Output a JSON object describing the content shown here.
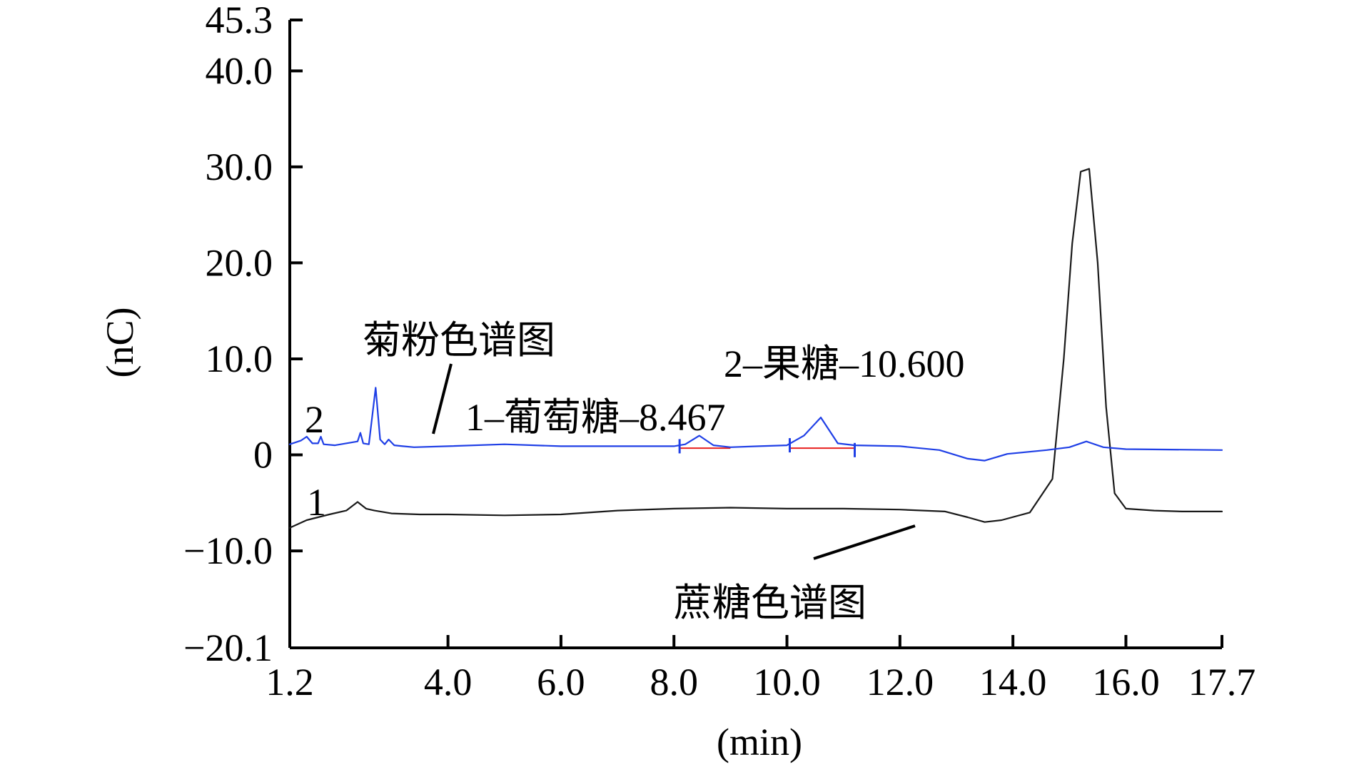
{
  "chart_data": {
    "type": "line",
    "xlabel": "(min)",
    "ylabel": "(nC)",
    "xlim": [
      1.2,
      17.7
    ],
    "ylim": [
      -20.1,
      45.3
    ],
    "x_ticks": [
      1.2,
      4.0,
      6.0,
      8.0,
      10.0,
      12.0,
      14.0,
      16.0,
      17.7
    ],
    "x_tick_labels": [
      "1.2",
      "4.0",
      "6.0",
      "8.0",
      "10.0",
      "12.0",
      "14.0",
      "16.0",
      "17.7"
    ],
    "y_ticks": [
      -20.1,
      -10.0,
      0,
      10.0,
      20.0,
      30.0,
      40.0,
      45.3
    ],
    "y_tick_labels": [
      "−20.1",
      "−10.0",
      "0",
      "10.0",
      "20.0",
      "30.0",
      "40.0",
      "45.3"
    ],
    "grid": false,
    "series": [
      {
        "name": "1",
        "color": "#1a1a1a",
        "x": [
          1.2,
          1.5,
          1.9,
          2.2,
          2.4,
          2.55,
          2.7,
          3.0,
          3.5,
          4.0,
          5.0,
          6.0,
          7.0,
          8.0,
          9.0,
          10.0,
          11.0,
          12.0,
          12.8,
          13.2,
          13.5,
          13.8,
          14.3,
          14.7,
          14.9,
          15.05,
          15.2,
          15.35,
          15.5,
          15.65,
          15.8,
          16.0,
          16.5,
          17.0,
          17.7
        ],
        "values": [
          -7.6,
          -6.8,
          -6.2,
          -5.8,
          -4.9,
          -5.6,
          -5.8,
          -6.1,
          -6.2,
          -6.2,
          -6.3,
          -6.2,
          -5.8,
          -5.6,
          -5.5,
          -5.6,
          -5.6,
          -5.7,
          -5.9,
          -6.5,
          -7.0,
          -6.8,
          -6.0,
          -2.5,
          10.0,
          22.0,
          29.5,
          29.8,
          20.0,
          5.0,
          -4.0,
          -5.6,
          -5.8,
          -5.9,
          -5.9
        ]
      },
      {
        "name": "2",
        "color": "#1f3fe6",
        "x": [
          1.2,
          1.4,
          1.5,
          1.6,
          1.7,
          1.75,
          1.8,
          2.0,
          2.4,
          2.45,
          2.5,
          2.6,
          2.72,
          2.8,
          2.88,
          2.95,
          3.05,
          3.2,
          3.4,
          4.0,
          5.0,
          6.0,
          7.0,
          8.0,
          8.2,
          8.45,
          8.7,
          9.0,
          9.5,
          10.0,
          10.3,
          10.6,
          10.9,
          11.2,
          12.0,
          12.7,
          13.2,
          13.5,
          13.9,
          14.6,
          15.0,
          15.3,
          15.6,
          16.0,
          17.7
        ],
        "values": [
          1.1,
          1.5,
          1.9,
          1.2,
          1.2,
          1.9,
          1.1,
          1.0,
          1.4,
          2.3,
          1.2,
          1.1,
          7.0,
          1.6,
          1.1,
          1.6,
          1.0,
          0.9,
          0.8,
          0.9,
          1.1,
          0.9,
          0.9,
          0.9,
          1.1,
          2.0,
          1.0,
          0.8,
          0.9,
          1.0,
          2.0,
          3.9,
          1.2,
          1.0,
          0.9,
          0.5,
          -0.4,
          -0.6,
          0.1,
          0.5,
          0.8,
          1.4,
          0.8,
          0.6,
          0.5
        ]
      }
    ],
    "baselines": [
      {
        "x": [
          8.1,
          9.0
        ],
        "value": 0.7,
        "color": "#e8201e"
      },
      {
        "x": [
          10.05,
          11.2
        ],
        "value": 0.7,
        "color": "#e8201e"
      }
    ],
    "peak_marks": [
      {
        "x": 8.1,
        "value": 0.9
      },
      {
        "x": 10.05,
        "value": 1.0
      },
      {
        "x": 11.2,
        "value": 0.5
      }
    ],
    "annotations": {
      "label_2": "2",
      "label_1": "1",
      "inulin_chromatogram": "菊粉色谱图",
      "sucrose_chromatogram": "蔗糖色谱图",
      "glucose_peak": "1–葡萄糖–8.467",
      "fructose_peak": "2–果糖–10.600"
    }
  }
}
